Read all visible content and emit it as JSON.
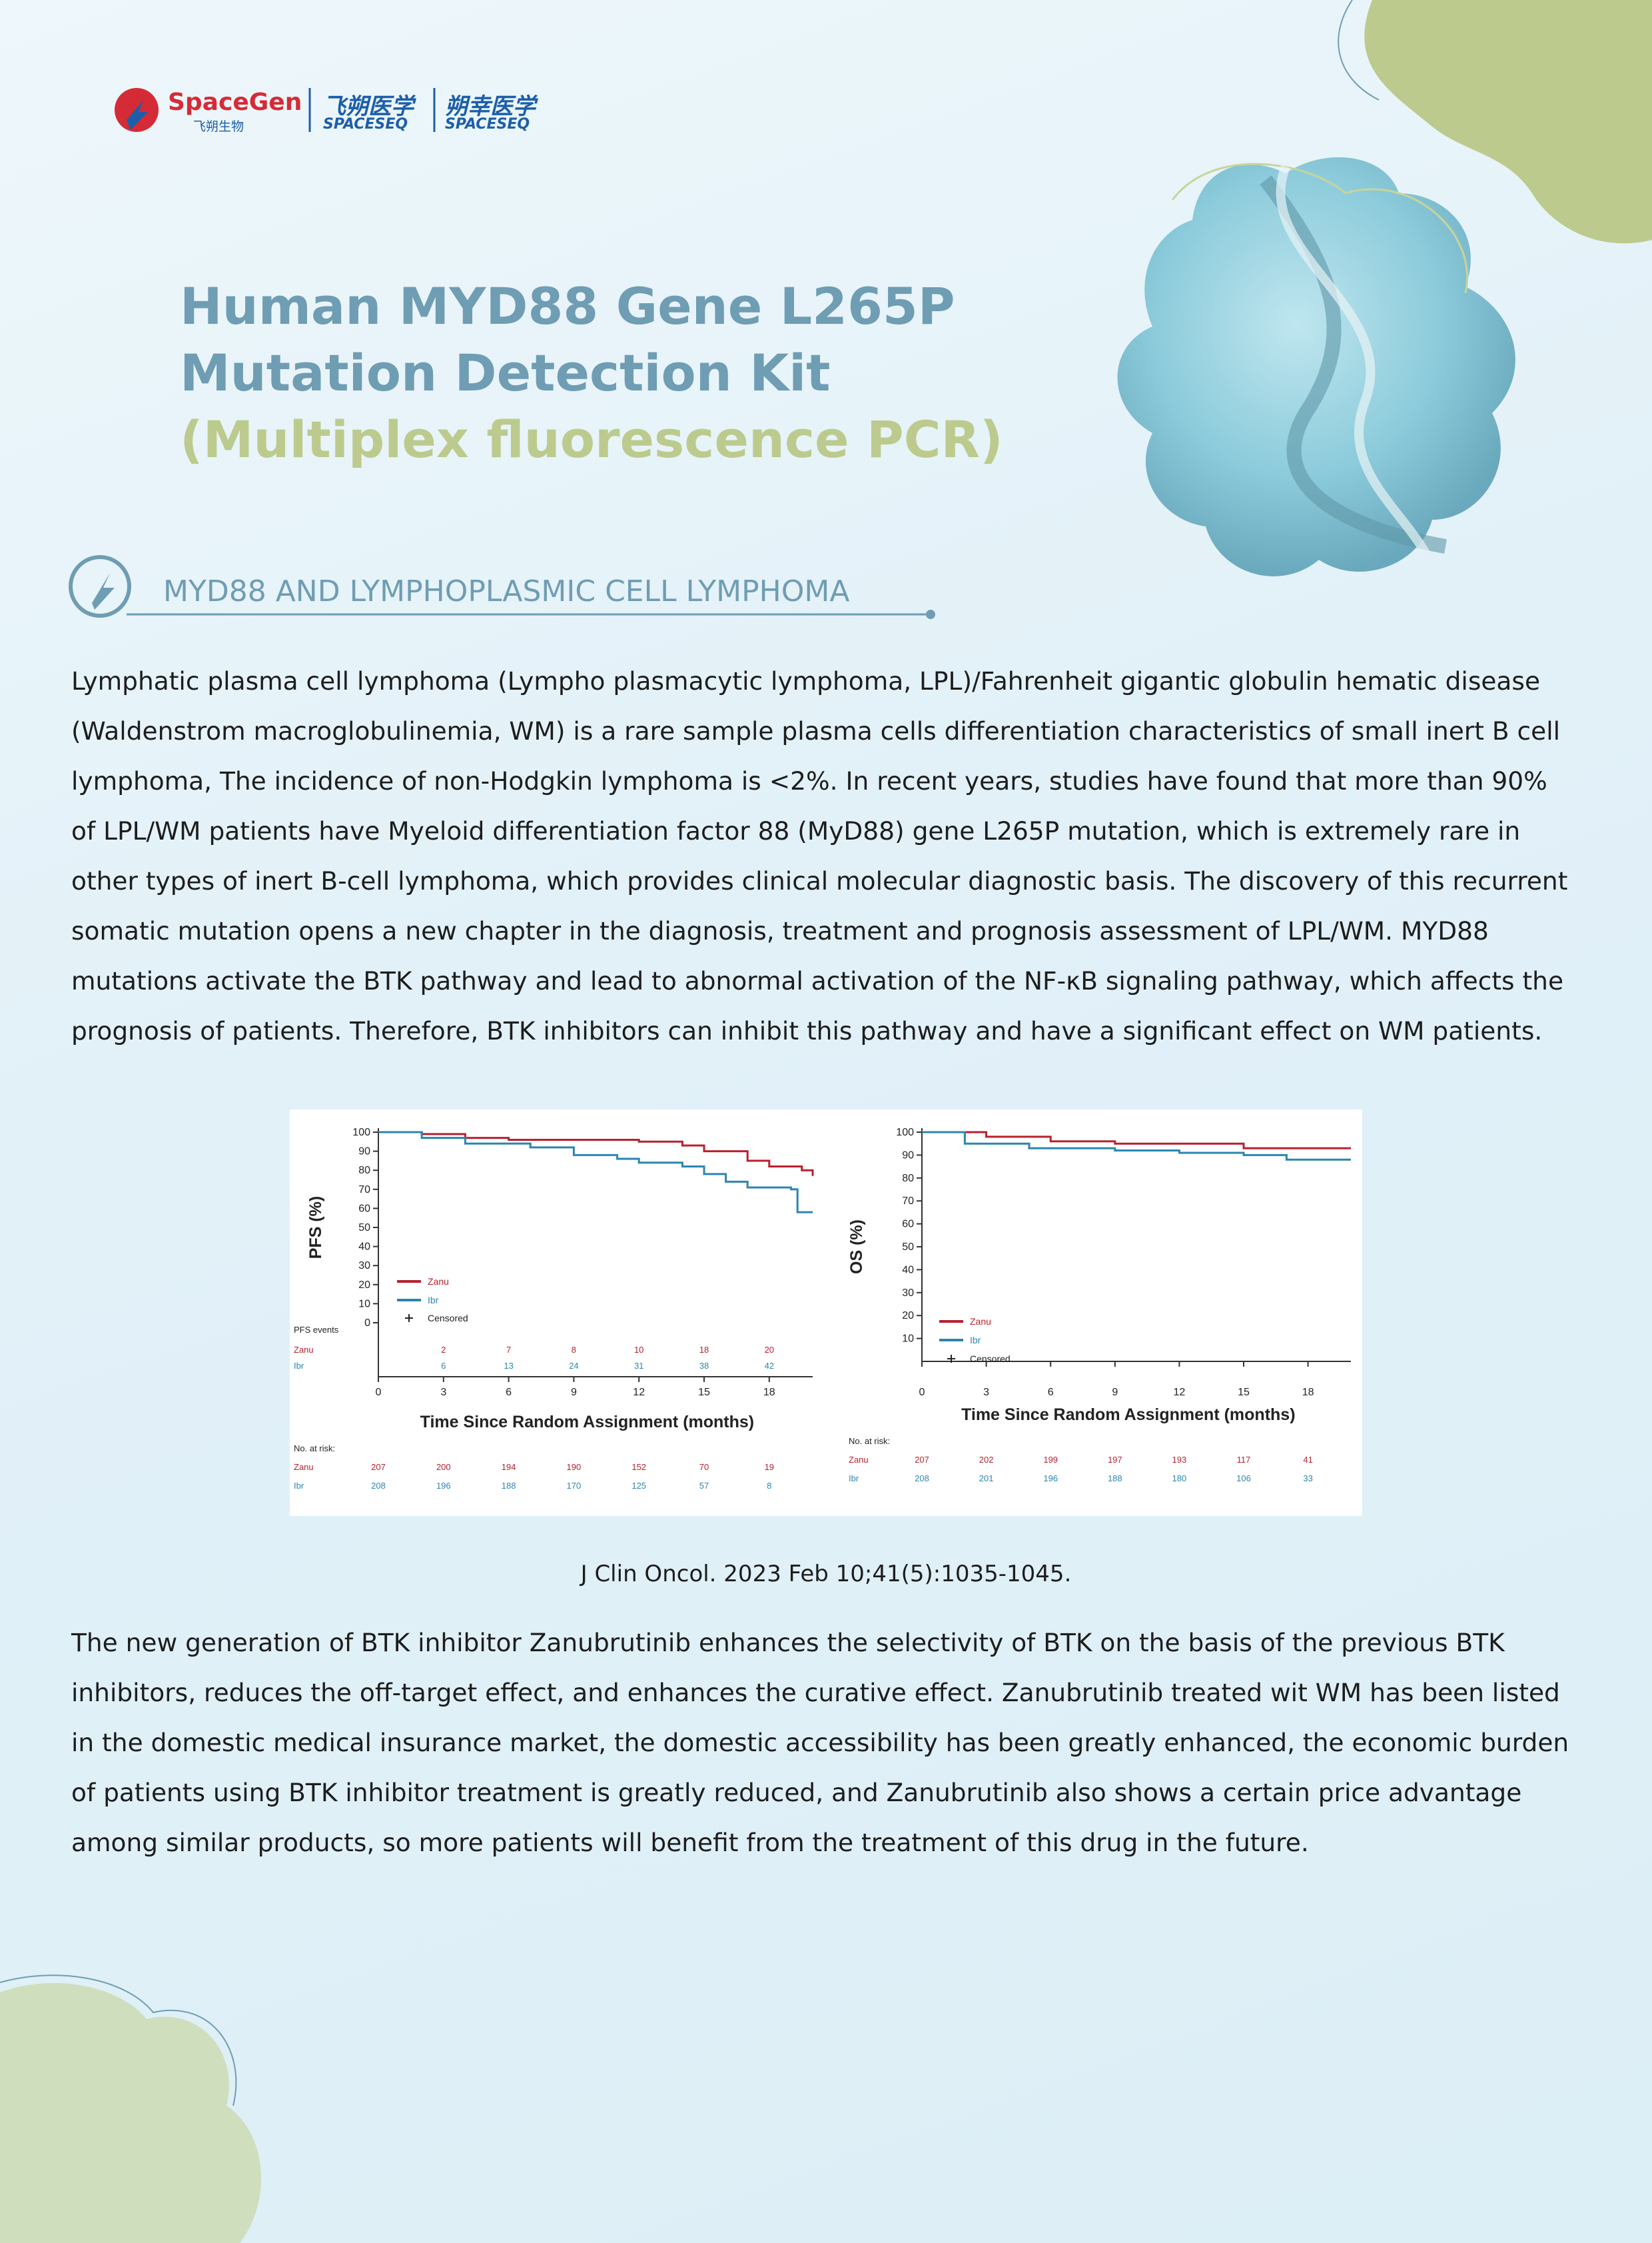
{
  "header": {
    "logo_name": "SpaceGen",
    "logo_sub": "飞朔生物",
    "brand1_cn": "飞朔医学",
    "brand1_en": "SPACESEQ",
    "brand2_cn": "朔幸医学",
    "brand2_en": "SPACESEQ"
  },
  "title": {
    "line1": "Human MYD88 Gene L265P",
    "line2": "Mutation Detection Kit",
    "line3": "(Multiplex fluorescence PCR)"
  },
  "section": {
    "heading": "MYD88 AND LYMPHOPLASMIC CELL LYMPHOMA"
  },
  "intro": "Lymphatic plasma cell lymphoma (Lympho plasmacytic lymphoma, LPL)/Fahrenheit gigantic globulin hematic disease (Waldenstrom macroglobulinemia, WM) is a rare sample plasma cells differentiation characteristics of small inert B cell lymphoma, The incidence of non-Hodgkin lymphoma is <2%. In recent years, studies have found that more than 90% of LPL/WM patients have Myeloid differentiation factor 88 (MyD88) gene L265P mutation, which is extremely rare in other types of inert B-cell lymphoma, which provides clinical molecular diagnostic basis. The discovery of this recurrent somatic mutation opens a new chapter in the diagnosis, treatment and prognosis assessment of LPL/WM. MYD88 mutations activate the BTK pathway and lead to abnormal activation of the NF-κB signaling pathway, which affects the prognosis of patients. Therefore, BTK inhibitors can inhibit this pathway and have a significant effect on WM patients.",
  "chart_data": [
    {
      "type": "line",
      "y_label": "PFS (%)",
      "x_label": "Time Since Random Assignment (months)",
      "xlim": [
        0,
        20
      ],
      "ylim": [
        0,
        100
      ],
      "xticks": [
        0,
        3,
        6,
        9,
        12,
        15,
        18
      ],
      "yticks": [
        0,
        10,
        20,
        30,
        40,
        50,
        60,
        70,
        80,
        90,
        100
      ],
      "censored_label": "Censored",
      "series": [
        {
          "name": "Zanu",
          "color": "#b8202e",
          "x": [
            0,
            2,
            4,
            6,
            9,
            12,
            14,
            15,
            17,
            18,
            19.5,
            20
          ],
          "values": [
            100,
            99,
            97,
            96,
            96,
            95,
            93,
            90,
            85,
            82,
            80,
            77
          ]
        },
        {
          "name": "Ibr",
          "color": "#2a86b0",
          "x": [
            0,
            2,
            4,
            7,
            9,
            11,
            12,
            14,
            15,
            16,
            17,
            19,
            19.3,
            20
          ],
          "values": [
            100,
            97,
            94,
            92,
            88,
            86,
            84,
            82,
            78,
            74,
            71,
            70,
            58,
            58
          ]
        }
      ],
      "events": {
        "label": "PFS events",
        "x": [
          3,
          6,
          9,
          12,
          15,
          18
        ],
        "rows": [
          [
            2,
            7,
            8,
            10,
            18,
            20
          ],
          [
            6,
            13,
            24,
            31,
            38,
            42
          ]
        ]
      },
      "at_risk": {
        "label": "No. at risk:",
        "x": [
          0,
          3,
          6,
          9,
          12,
          15,
          18
        ],
        "rows": [
          [
            207,
            200,
            194,
            190,
            152,
            70,
            19
          ],
          [
            208,
            196,
            188,
            170,
            125,
            57,
            8
          ]
        ]
      }
    },
    {
      "type": "line",
      "y_label": "OS (%)",
      "x_label": "Time Since Random Assignment (months)",
      "xlim": [
        0,
        20
      ],
      "ylim": [
        0,
        100
      ],
      "xticks": [
        0,
        3,
        6,
        9,
        12,
        15,
        18
      ],
      "yticks": [
        10,
        20,
        30,
        40,
        50,
        60,
        70,
        80,
        90,
        100
      ],
      "censored_label": "Censored",
      "series": [
        {
          "name": "Zanu",
          "color": "#b8202e",
          "x": [
            0,
            3,
            6,
            9,
            12,
            15,
            20
          ],
          "values": [
            100,
            98,
            96,
            95,
            95,
            93,
            93
          ]
        },
        {
          "name": "Ibr",
          "color": "#2a86b0",
          "x": [
            0,
            2,
            5,
            9,
            12,
            15,
            17,
            20
          ],
          "values": [
            100,
            95,
            93,
            92,
            91,
            90,
            88,
            88
          ]
        }
      ],
      "at_risk": {
        "label": "No. at risk:",
        "x": [
          0,
          3,
          6,
          9,
          12,
          15,
          18
        ],
        "rows": [
          [
            207,
            202,
            199,
            197,
            193,
            117,
            41
          ],
          [
            208,
            201,
            196,
            188,
            180,
            106,
            33
          ]
        ]
      }
    }
  ],
  "citation": "J Clin Oncol. 2023 Feb 10;41(5):1035-1045.",
  "discussion": "The new generation of BTK inhibitor Zanubrutinib enhances the selectivity of BTK on the basis of the previous BTK inhibitors, reduces the off-target effect, and enhances the curative effect. Zanubrutinib treated wit WM has been listed in the domestic medical insurance market, the domestic accessibility has been greatly enhanced, the economic burden of patients using BTK inhibitor treatment is greatly reduced, and Zanubrutinib also shows a certain price advantage among similar products, so more patients will benefit from the treatment of this drug in the future."
}
